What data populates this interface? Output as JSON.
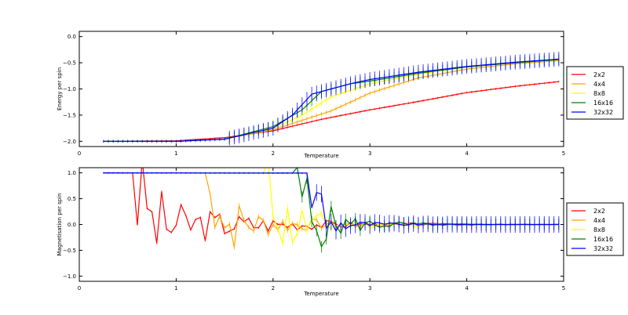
{
  "chart_data": [
    {
      "type": "line",
      "title": "",
      "xlabel": "Temperature",
      "ylabel": "Energy per spin",
      "xlim": [
        0,
        5
      ],
      "ylim": [
        -2.1,
        0.1
      ],
      "xticks": [
        "0",
        "1",
        "2",
        "3",
        "4",
        "5"
      ],
      "yticks": [
        "0.0",
        "−0.5",
        "−1.0",
        "−1.5",
        "−2.0"
      ],
      "legend_position": "right",
      "x": {
        "start": 0.25,
        "end": 4.95,
        "count": 95
      },
      "series": [
        {
          "name": "2x2",
          "color": "#ff0000",
          "knots": [
            [
              0.25,
              -2.0
            ],
            [
              1.0,
              -1.99
            ],
            [
              1.5,
              -1.93
            ],
            [
              2.0,
              -1.8
            ],
            [
              2.5,
              -1.58
            ],
            [
              3.0,
              -1.4
            ],
            [
              3.5,
              -1.24
            ],
            [
              4.0,
              -1.07
            ],
            [
              4.5,
              -0.95
            ],
            [
              4.95,
              -0.86
            ]
          ],
          "err": 0.02
        },
        {
          "name": "4x4",
          "color": "#ffa500",
          "knots": [
            [
              0.25,
              -2.0
            ],
            [
              1.0,
              -2.0
            ],
            [
              1.5,
              -1.96
            ],
            [
              2.0,
              -1.78
            ],
            [
              2.3,
              -1.6
            ],
            [
              2.6,
              -1.42
            ],
            [
              3.0,
              -1.08
            ],
            [
              3.5,
              -0.79
            ],
            [
              4.0,
              -0.62
            ],
            [
              4.5,
              -0.52
            ],
            [
              4.95,
              -0.46
            ]
          ],
          "err": 0.04
        },
        {
          "name": "8x8",
          "color": "#ffff00",
          "knots": [
            [
              0.25,
              -2.0
            ],
            [
              1.0,
              -2.0
            ],
            [
              1.5,
              -1.96
            ],
            [
              2.0,
              -1.76
            ],
            [
              2.3,
              -1.5
            ],
            [
              2.6,
              -1.15
            ],
            [
              3.0,
              -0.9
            ],
            [
              3.5,
              -0.72
            ],
            [
              4.0,
              -0.58
            ],
            [
              4.5,
              -0.5
            ],
            [
              4.95,
              -0.45
            ]
          ],
          "err": 0.06
        },
        {
          "name": "16x16",
          "color": "#008000",
          "knots": [
            [
              0.25,
              -2.0
            ],
            [
              1.0,
              -2.0
            ],
            [
              1.5,
              -1.96
            ],
            [
              2.0,
              -1.72
            ],
            [
              2.3,
              -1.4
            ],
            [
              2.5,
              -1.05
            ],
            [
              2.8,
              -0.9
            ],
            [
              3.0,
              -0.85
            ],
            [
              3.5,
              -0.7
            ],
            [
              4.0,
              -0.58
            ],
            [
              4.5,
              -0.5
            ],
            [
              4.95,
              -0.44
            ]
          ],
          "err": 0.1
        },
        {
          "name": "32x32",
          "color": "#0000ff",
          "knots": [
            [
              0.25,
              -2.0
            ],
            [
              1.0,
              -2.0
            ],
            [
              1.5,
              -1.96
            ],
            [
              2.0,
              -1.75
            ],
            [
              2.2,
              -1.5
            ],
            [
              2.4,
              -1.1
            ],
            [
              2.6,
              -1.0
            ],
            [
              2.8,
              -0.9
            ],
            [
              3.0,
              -0.82
            ],
            [
              3.5,
              -0.68
            ],
            [
              4.0,
              -0.57
            ],
            [
              4.5,
              -0.49
            ],
            [
              4.95,
              -0.43
            ]
          ],
          "err": 0.14
        }
      ]
    },
    {
      "type": "line",
      "title": "",
      "xlabel": "Temperature",
      "ylabel": "Magnetisation per spin",
      "xlim": [
        0,
        5
      ],
      "ylim": [
        -1.1,
        1.1
      ],
      "xticks": [
        "0",
        "1",
        "2",
        "3",
        "4",
        "5"
      ],
      "yticks": [
        "1.0",
        "0.5",
        "0.0",
        "−0.5",
        "−1.0"
      ],
      "legend_position": "right",
      "x": {
        "start": 0.25,
        "end": 4.95,
        "count": 95
      },
      "series": [
        {
          "name": "2x2",
          "color": "#ff0000",
          "ordered_until": 0.6,
          "spread": 0.7,
          "decay": 1.1,
          "seed": 3,
          "err": 0.02
        },
        {
          "name": "4x4",
          "color": "#ffa500",
          "ordered_until": 1.35,
          "spread": 0.6,
          "decay": 1.6,
          "seed": 7,
          "err": 0.05
        },
        {
          "name": "8x8",
          "color": "#ffff00",
          "ordered_until": 1.95,
          "spread": 0.7,
          "decay": 2.0,
          "seed": 11,
          "err": 0.07
        },
        {
          "name": "16x16",
          "color": "#008000",
          "ordered_until": 2.25,
          "spread": 0.6,
          "decay": 2.2,
          "seed": 5,
          "err": 0.11
        },
        {
          "name": "32x32",
          "color": "#0000ff",
          "ordered_until": 2.4,
          "spread": 0.25,
          "decay": 2.5,
          "seed": 9,
          "err": 0.16
        }
      ]
    }
  ]
}
